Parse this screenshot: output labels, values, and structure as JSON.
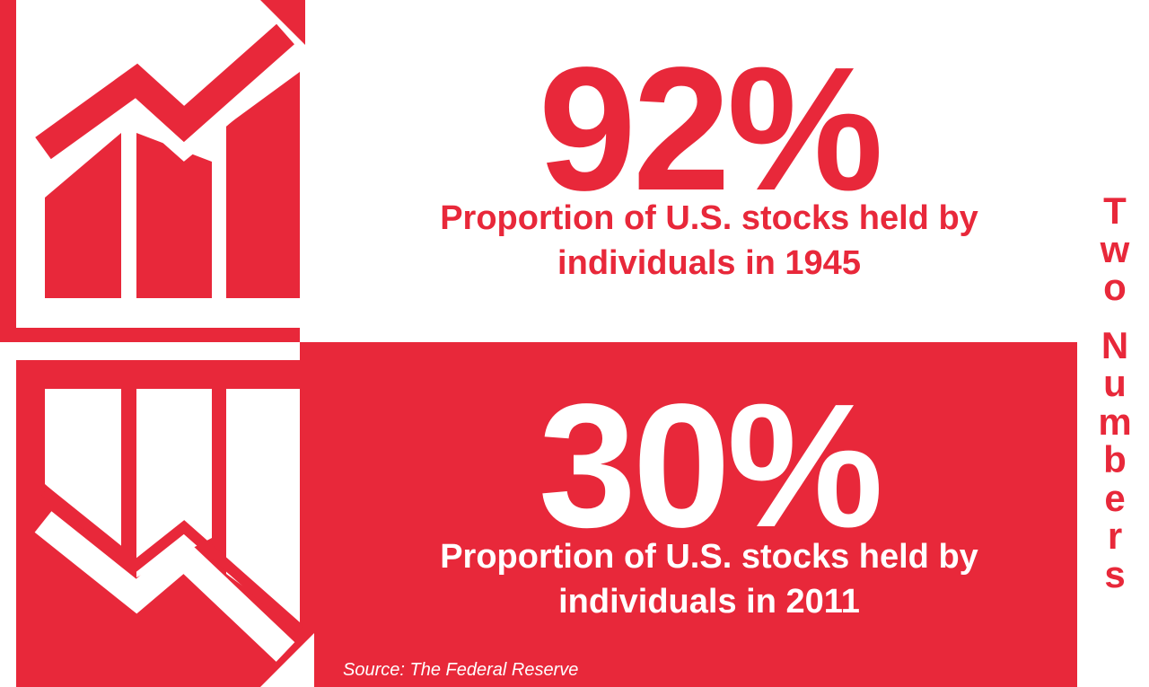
{
  "theme": {
    "accent": "#e8283a",
    "background": "#ffffff"
  },
  "title": {
    "word1": "Two",
    "word2": "Numbers"
  },
  "stats": [
    {
      "value": "92%",
      "caption_line1": "Proportion of U.S. stocks held by",
      "caption_line2": "individuals in 1945",
      "icon": "chart-up-icon"
    },
    {
      "value": "30%",
      "caption_line1": "Proportion of U.S. stocks held by",
      "caption_line2": "individuals in 2011",
      "icon": "chart-down-icon"
    }
  ],
  "source": "Source: The Federal Reserve"
}
